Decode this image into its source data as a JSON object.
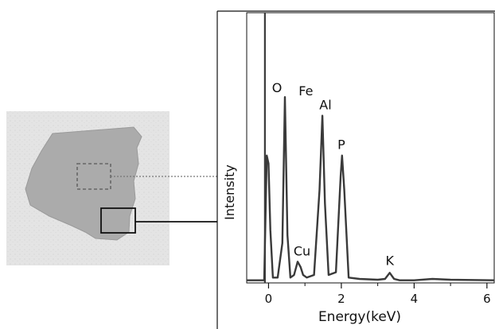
{
  "chart_data": {
    "type": "line",
    "xlabel": "Energy(keV)",
    "ylabel": "Intensity",
    "xlim": [
      -0.6,
      6.2
    ],
    "ylim": [
      0,
      100
    ],
    "x_ticks": [
      0,
      2,
      4,
      6
    ],
    "x_tick_labels": [
      "0",
      "2",
      "4",
      "6"
    ],
    "series": [
      {
        "x": [
          -0.6,
          -0.12,
          -0.05,
          0.0,
          0.05,
          0.12,
          0.25,
          0.38,
          0.45,
          0.52,
          0.6,
          0.7,
          0.8,
          0.88,
          0.95,
          1.05,
          1.25,
          1.4,
          1.48,
          1.55,
          1.65,
          1.85,
          1.98,
          2.02,
          2.08,
          2.2,
          2.5,
          3.0,
          3.2,
          3.33,
          3.45,
          3.6,
          4.0,
          4.5,
          5.0,
          6.2
        ],
        "y": [
          1,
          1,
          48,
          45,
          20,
          2,
          2,
          15,
          70,
          18,
          2,
          3,
          8,
          6,
          3,
          2,
          3,
          35,
          63,
          30,
          3,
          4,
          40,
          48,
          35,
          2,
          1.5,
          1.2,
          1.5,
          3.8,
          1.5,
          1,
          1,
          1.5,
          1.2,
          1
        ]
      }
    ],
    "peak_labels": [
      {
        "text": "O",
        "x": 0.45,
        "y": 70
      },
      {
        "text": "Fe",
        "x": 0.72,
        "y": 70
      },
      {
        "text": "Al",
        "x": 1.52,
        "y": 63
      },
      {
        "text": "P",
        "x": 2.0,
        "y": 48
      },
      {
        "text": "Cu",
        "x": 0.92,
        "y": 8
      },
      {
        "text": "K",
        "x": 3.33,
        "y": 3.8
      }
    ]
  },
  "sample_photo": {
    "region_markers": [
      "dashed-box",
      "solid-box"
    ]
  }
}
